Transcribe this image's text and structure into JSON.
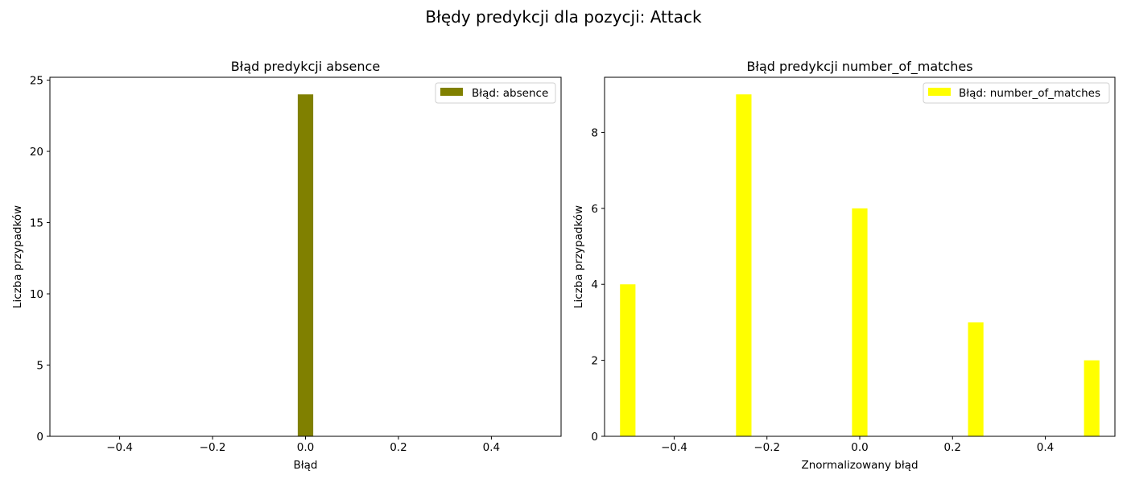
{
  "figure": {
    "title": "Błędy predykcji dla pozycji: Attack"
  },
  "chart_data": [
    {
      "type": "bar",
      "title": "Błąd predykcji absence",
      "xlabel": "Błąd",
      "ylabel": "Liczba przypadków",
      "xlim": [
        -0.55,
        0.55
      ],
      "ylim": [
        0,
        25.2
      ],
      "xticks": [
        -0.4,
        -0.2,
        0.0,
        0.2,
        0.4
      ],
      "xtick_labels": [
        "−0.4",
        "−0.2",
        "0.0",
        "0.2",
        "0.4"
      ],
      "yticks": [
        0,
        5,
        10,
        15,
        20,
        25
      ],
      "ytick_labels": [
        "0",
        "5",
        "10",
        "15",
        "20",
        "25"
      ],
      "bar_width": 0.0333,
      "series": [
        {
          "name": "Błąd: absence",
          "color": "#808000",
          "x": [
            0.0
          ],
          "values": [
            24
          ]
        }
      ],
      "legend": "top-right",
      "grid": false
    },
    {
      "type": "bar",
      "title": "Błąd predykcji number_of_matches",
      "xlabel": "Znormalizowany błąd",
      "ylabel": "Liczba przypadków",
      "xlim": [
        -0.55,
        0.55
      ],
      "ylim": [
        0,
        9.45
      ],
      "xticks": [
        -0.4,
        -0.2,
        0.0,
        0.2,
        0.4
      ],
      "xtick_labels": [
        "−0.4",
        "−0.2",
        "0.0",
        "0.2",
        "0.4"
      ],
      "yticks": [
        0,
        2,
        4,
        6,
        8
      ],
      "ytick_labels": [
        "0",
        "2",
        "4",
        "6",
        "8"
      ],
      "bar_width": 0.0333,
      "series": [
        {
          "name": "Błąd: number_of_matches",
          "color": "#ffff00",
          "x": [
            -0.5,
            -0.25,
            0.0,
            0.25,
            0.5
          ],
          "values": [
            4,
            9,
            6,
            3,
            2
          ]
        }
      ],
      "legend": "top-right",
      "grid": false
    }
  ]
}
